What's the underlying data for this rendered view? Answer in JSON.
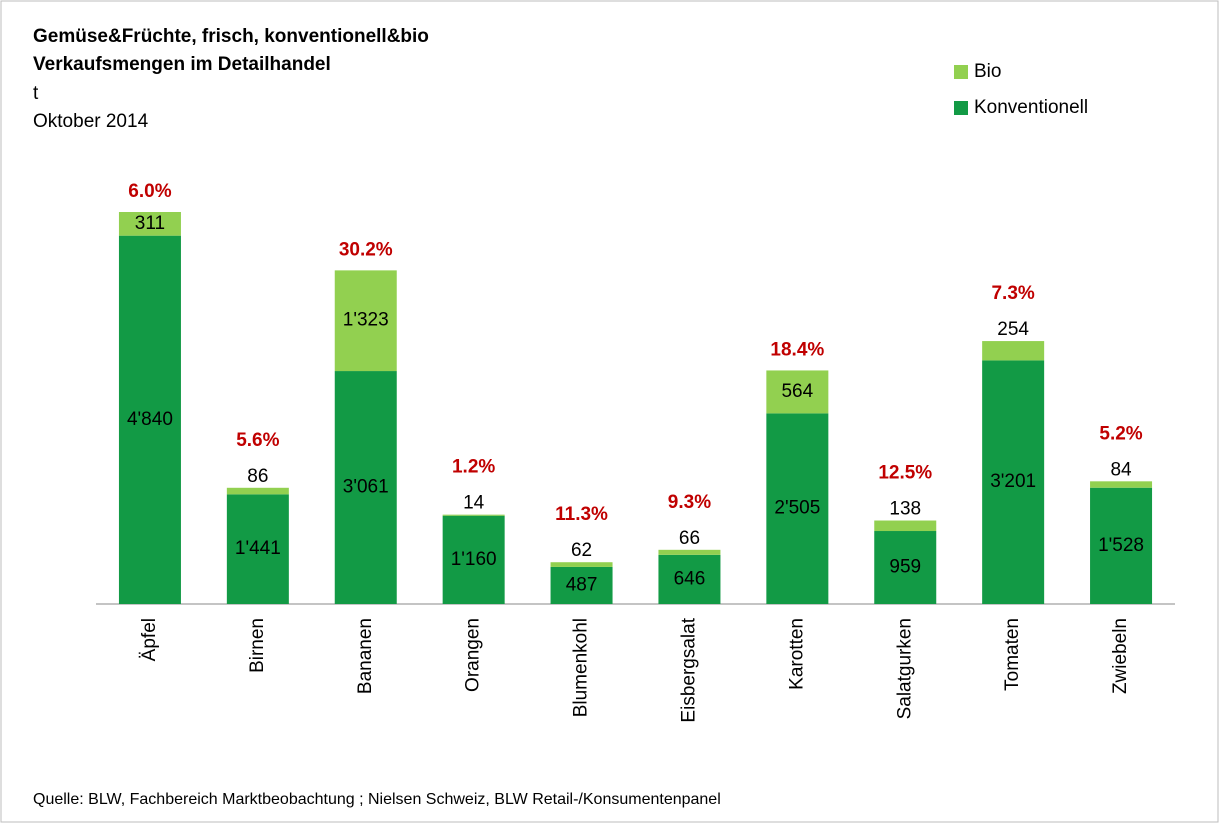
{
  "chart_data": {
    "type": "stacked-bar",
    "title": "Gemüse&Früchte, frisch, konventionell&bio",
    "subtitle": "Verkaufsmengen im Detailhandel",
    "unit": "t",
    "period": "Oktober 2014",
    "categories": [
      "Äpfel",
      "Birnen",
      "Bananen",
      "Orangen",
      "Blumenkohl",
      "Eisbergsalat",
      "Karotten",
      "Salatgurken",
      "Tomaten",
      "Zwiebeln"
    ],
    "series": [
      {
        "name": "Konventionell",
        "color": "#129a45",
        "values": [
          4840,
          1441,
          3061,
          1160,
          487,
          646,
          2505,
          959,
          3201,
          1528
        ],
        "value_labels": [
          "4'840",
          "1'441",
          "3'061",
          "1'160",
          "487",
          "646",
          "2'505",
          "959",
          "3'201",
          "1'528"
        ]
      },
      {
        "name": "Bio",
        "color": "#92d050",
        "values": [
          311,
          86,
          1323,
          14,
          62,
          66,
          564,
          138,
          254,
          84
        ],
        "value_labels": [
          "311",
          "86",
          "1'323",
          "14",
          "62",
          "66",
          "564",
          "138",
          "254",
          "84"
        ]
      }
    ],
    "share_labels": [
      "6.0%",
      "5.6%",
      "30.2%",
      "1.2%",
      "11.3%",
      "9.3%",
      "18.4%",
      "12.5%",
      "7.3%",
      "5.2%"
    ],
    "share_color": "#c00000",
    "source": "Quelle: BLW,  Fachbereich Marktbeobachtung ; Nielsen Schweiz, BLW Retail-/Konsumentenpanel"
  }
}
